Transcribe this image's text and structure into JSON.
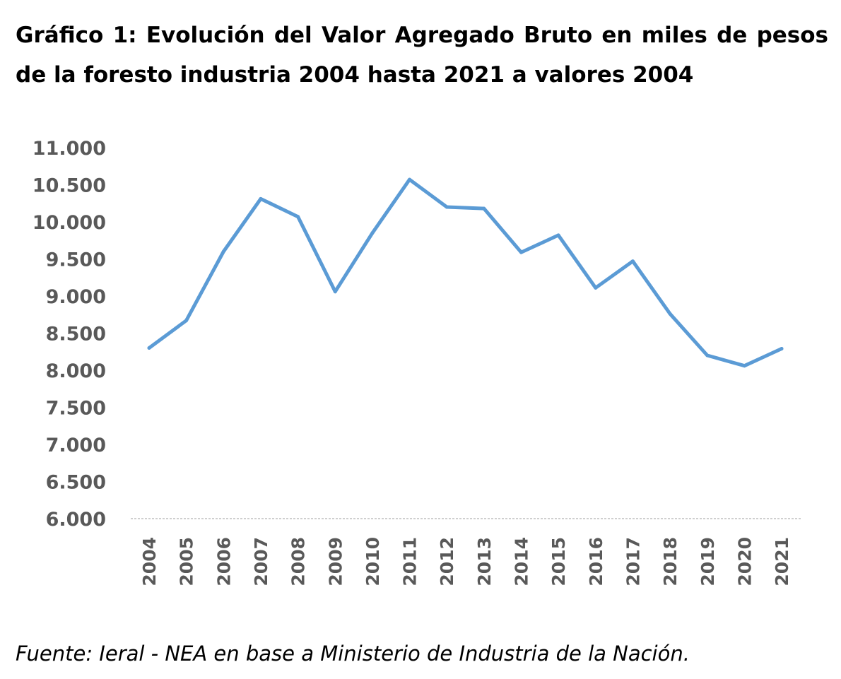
{
  "chart_data": {
    "type": "line",
    "title": "Gráfico 1: Evolución del Valor Agregado Bruto en miles de pesos de la foresto industria 2004 hasta 2021 a valores 2004",
    "source": "Fuente: Ieral - NEA en base a Ministerio de Industria de la Nación.",
    "categories": [
      "2004",
      "2005",
      "2006",
      "2007",
      "2008",
      "2009",
      "2010",
      "2011",
      "2012",
      "2013",
      "2014",
      "2015",
      "2016",
      "2017",
      "2018",
      "2019",
      "2020",
      "2021"
    ],
    "series": [
      {
        "values": [
          8300,
          8670,
          9600,
          10310,
          10070,
          9060,
          9850,
          10570,
          10200,
          10180,
          9590,
          9820,
          9110,
          9470,
          8760,
          8200,
          8060,
          8290
        ]
      }
    ],
    "y_tick_labels": [
      "6.000",
      "6.500",
      "7.000",
      "7.500",
      "8.000",
      "8.500",
      "9.000",
      "9.500",
      "10.000",
      "10.500",
      "11.000"
    ],
    "ylim": [
      6000,
      11000
    ],
    "xlabel": "",
    "ylabel": "",
    "grid": false,
    "legend": "none",
    "colors": {
      "line": "#5B9BD5",
      "axis": "#BFBFBF",
      "tick_text": "#595959"
    }
  }
}
